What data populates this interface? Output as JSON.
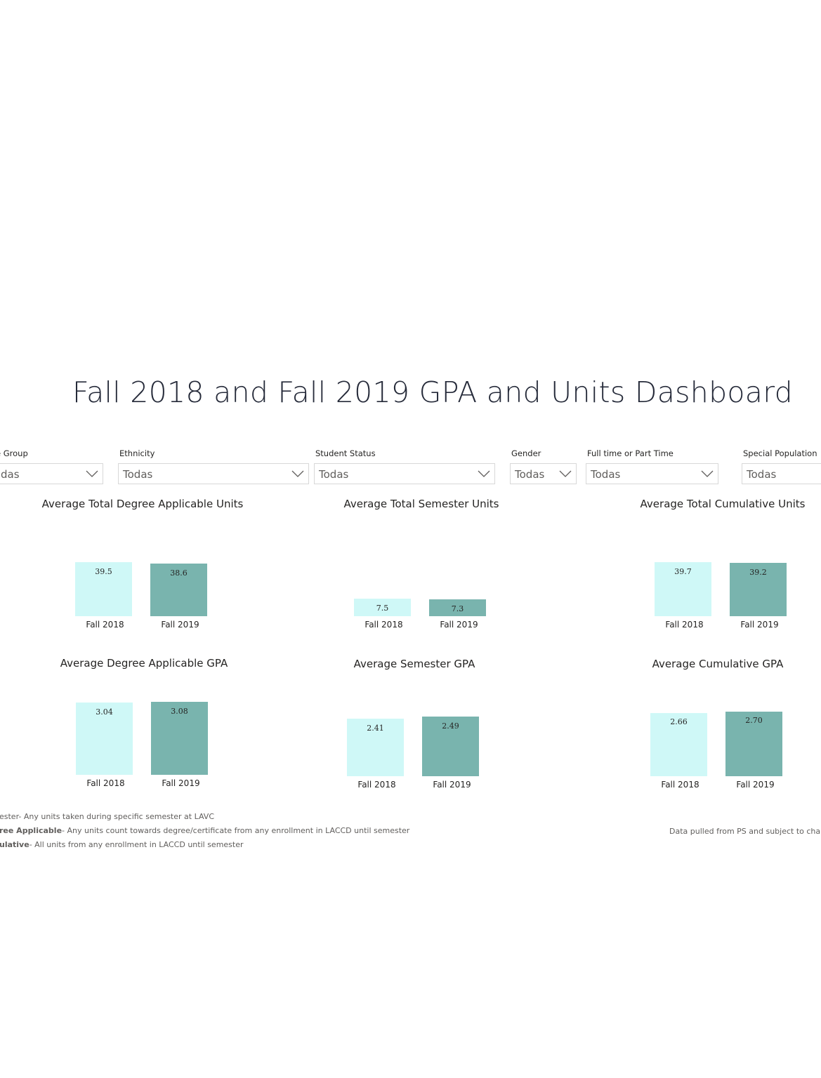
{
  "dashboard_title": "Fall 2018 and Fall 2019 GPA and Units Dashboard",
  "filters": [
    {
      "label": "e Group",
      "value": "das"
    },
    {
      "label": "Ethnicity",
      "value": "Todas"
    },
    {
      "label": "Student Status",
      "value": "Todas"
    },
    {
      "label": "Gender",
      "value": "Todas"
    },
    {
      "label": "Full time or Part Time",
      "value": "Todas"
    },
    {
      "label": "Special Population",
      "value": "Todas"
    }
  ],
  "colors": {
    "fall_2018": "#cff8f7",
    "fall_2019": "#79b4ae"
  },
  "chart_data": [
    {
      "type": "bar",
      "title": "Average Total Degree Applicable Units",
      "categories": [
        "Fall 2018",
        "Fall 2019"
      ],
      "values": [
        39.5,
        38.6
      ],
      "labels": [
        "39.5",
        "38.6"
      ]
    },
    {
      "type": "bar",
      "title": "Average Total Semester Units",
      "categories": [
        "Fall 2018",
        "Fall 2019"
      ],
      "values": [
        7.5,
        7.3
      ],
      "labels": [
        "7.5",
        "7.3"
      ]
    },
    {
      "type": "bar",
      "title": "Average Total Cumulative Units",
      "categories": [
        "Fall 2018",
        "Fall 2019"
      ],
      "values": [
        39.7,
        39.2
      ],
      "labels": [
        "39.7",
        "39.2"
      ]
    },
    {
      "type": "bar",
      "title": "Average Degree Applicable GPA",
      "categories": [
        "Fall 2018",
        "Fall 2019"
      ],
      "values": [
        3.04,
        3.08
      ],
      "labels": [
        "3.04",
        "3.08"
      ]
    },
    {
      "type": "bar",
      "title": "Average Semester GPA",
      "categories": [
        "Fall 2018",
        "Fall 2019"
      ],
      "values": [
        2.41,
        2.49
      ],
      "labels": [
        "2.41",
        "2.49"
      ]
    },
    {
      "type": "bar",
      "title": "Average Cumulative GPA",
      "categories": [
        "Fall 2018",
        "Fall 2019"
      ],
      "values": [
        2.66,
        2.7
      ],
      "labels": [
        "2.66",
        "2.70"
      ]
    }
  ],
  "notes": {
    "semester": {
      "term": "ester",
      "text": "- Any units taken during specific semester at LAVC"
    },
    "degree_applicable": {
      "term": "ree Applicable",
      "text": "- Any units count towards degree/certificate from any enrollment in LACCD  until semester"
    },
    "cumulative": {
      "term": "ulative",
      "text": "- All units from any enrollment in LACCD until semester"
    },
    "disclaimer": "Data pulled from PS and subject to change a"
  }
}
